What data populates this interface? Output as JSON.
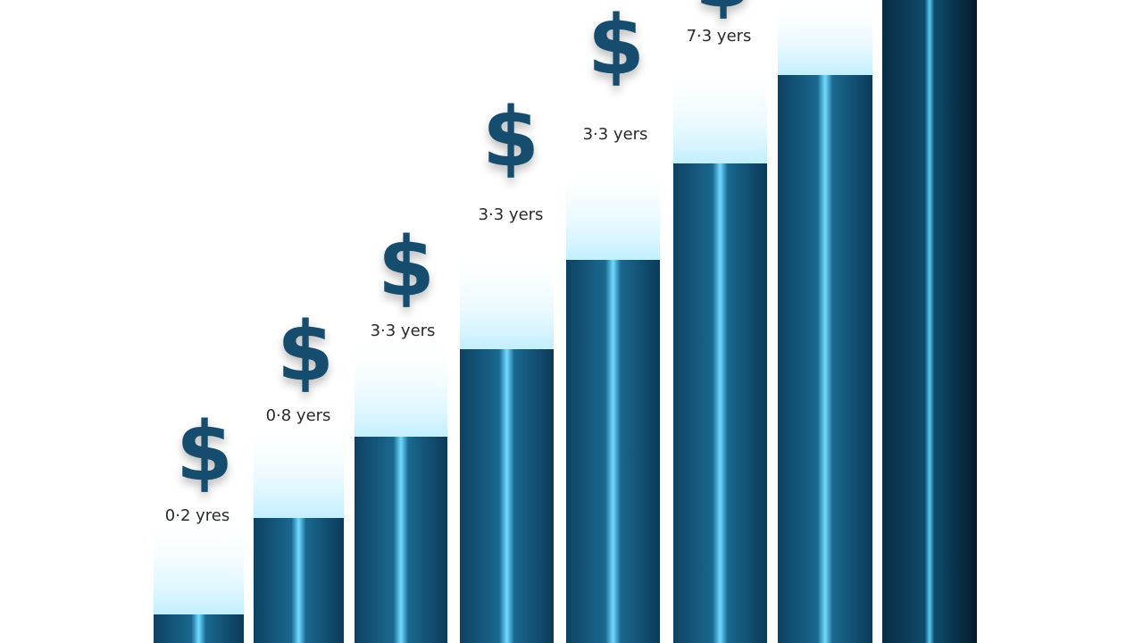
{
  "symbol": "$",
  "labels": [
    "0·2 yres",
    "0·8 yers",
    "3·3 yers",
    "3·3 yers",
    "3·3 yers",
    "7·3 yers"
  ]
}
